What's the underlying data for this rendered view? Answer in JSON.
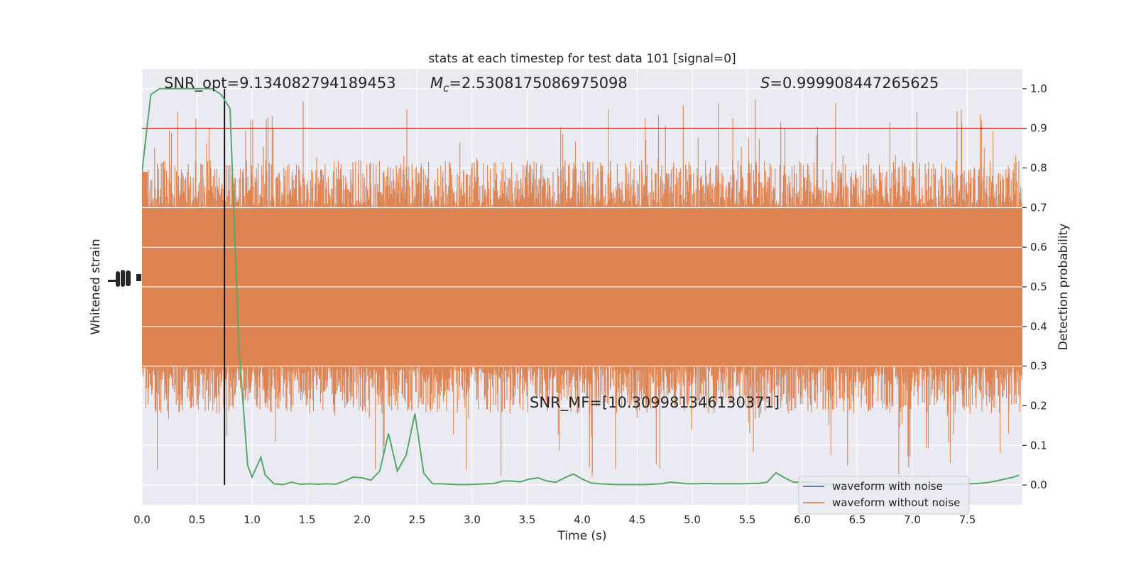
{
  "chart_data": {
    "type": "line",
    "title": "stats at each timestep for test data 101 [signal=0]",
    "xlabel": "Time (s)",
    "ylabel_left": "Whitened strain",
    "ylabel_right": "Detection probability",
    "xlim": [
      0.0,
      8.0
    ],
    "ylim_right": [
      -0.05,
      1.05
    ],
    "x_ticks": [
      "0.0",
      "0.5",
      "1.0",
      "1.5",
      "2.0",
      "2.5",
      "3.0",
      "3.5",
      "4.0",
      "4.5",
      "5.0",
      "5.5",
      "6.0",
      "6.5",
      "7.0",
      "7.5"
    ],
    "right_ticks": [
      "0.0",
      "0.1",
      "0.2",
      "0.3",
      "0.4",
      "0.5",
      "0.6",
      "0.7",
      "0.8",
      "0.9",
      "1.0"
    ],
    "grid": true,
    "legend_position": "lower-right",
    "annotations": {
      "snr_opt": "SNR_opt=9.134082794189453",
      "mc_symbol": "M",
      "mc_sub": "c",
      "mc_value": "=2.5308175086975098",
      "s_symbol": "S",
      "s_value": "=0.999908447265625",
      "snr_mf": "SNR_MF=[10.309981346130371]"
    },
    "threshold": 0.9,
    "merger_time": 0.75,
    "noise_band": {
      "core_low": 0.3,
      "core_high": 0.7,
      "spike_max": 0.975,
      "spike_min": 0.02,
      "left_edge_start": 0.79
    },
    "series": [
      {
        "name": "waveform with noise",
        "color": "#4c72b0"
      },
      {
        "name": "waveform without noise",
        "color": "#dd8452"
      }
    ],
    "probability": {
      "color": "#55a868",
      "x": [
        0.0,
        0.08,
        0.16,
        0.24,
        0.32,
        0.4,
        0.48,
        0.56,
        0.64,
        0.72,
        0.8,
        0.88,
        0.96,
        1.0,
        1.08,
        1.12,
        1.2,
        1.28,
        1.36,
        1.44,
        1.52,
        1.6,
        1.68,
        1.76,
        1.84,
        1.92,
        2.0,
        2.08,
        2.16,
        2.24,
        2.32,
        2.4,
        2.48,
        2.56,
        2.64,
        2.72,
        2.8,
        2.88,
        2.96,
        3.04,
        3.12,
        3.2,
        3.28,
        3.36,
        3.44,
        3.52,
        3.6,
        3.68,
        3.76,
        3.84,
        3.92,
        4.0,
        4.08,
        4.16,
        4.24,
        4.32,
        4.4,
        4.48,
        4.56,
        4.64,
        4.72,
        4.8,
        4.88,
        4.96,
        5.04,
        5.12,
        5.2,
        5.28,
        5.36,
        5.44,
        5.52,
        5.6,
        5.68,
        5.76,
        5.84,
        5.92,
        6.0,
        6.08,
        6.16,
        6.24,
        6.32,
        6.4,
        6.48,
        6.56,
        6.64,
        6.72,
        6.8,
        6.88,
        6.96,
        7.04,
        7.12,
        7.2,
        7.28,
        7.36,
        7.44,
        7.52,
        7.6,
        7.68,
        7.76,
        7.84,
        7.92,
        7.97
      ],
      "y": [
        0.79,
        0.985,
        1.0,
        1.0,
        1.0,
        1.0,
        1.0,
        1.0,
        1.0,
        0.985,
        0.95,
        0.35,
        0.05,
        0.02,
        0.07,
        0.025,
        0.003,
        0.001,
        0.007,
        0.002,
        0.003,
        0.002,
        0.003,
        0.002,
        0.01,
        0.02,
        0.018,
        0.012,
        0.035,
        0.13,
        0.035,
        0.075,
        0.18,
        0.03,
        0.003,
        0.003,
        0.002,
        0.001,
        0.001,
        0.002,
        0.003,
        0.004,
        0.01,
        0.01,
        0.008,
        0.015,
        0.018,
        0.01,
        0.007,
        0.018,
        0.028,
        0.015,
        0.005,
        0.003,
        0.002,
        0.001,
        0.001,
        0.001,
        0.001,
        0.002,
        0.003,
        0.007,
        0.005,
        0.003,
        0.003,
        0.004,
        0.003,
        0.003,
        0.003,
        0.003,
        0.004,
        0.004,
        0.007,
        0.031,
        0.018,
        0.007,
        0.007,
        0.007,
        0.004,
        0.002,
        0.002,
        0.002,
        0.002,
        0.002,
        0.002,
        0.002,
        0.002,
        0.002,
        0.002,
        0.001,
        0.002,
        0.002,
        0.002,
        0.002,
        0.002,
        0.003,
        0.004,
        0.006,
        0.01,
        0.015,
        0.02,
        0.025
      ]
    }
  }
}
